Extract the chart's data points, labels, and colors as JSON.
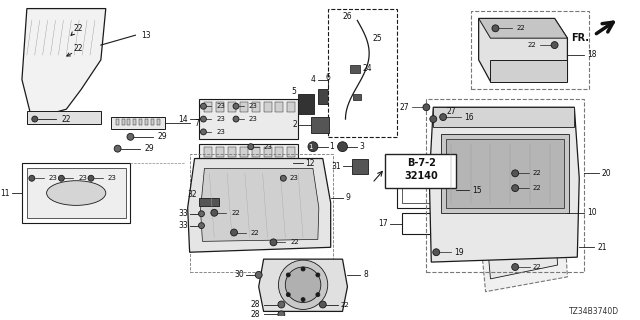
{
  "bg_color": "#ffffff",
  "ec": "#1a1a1a",
  "diagram_code": "TZ34B3740D",
  "fr_label": "FR.",
  "ref_text_line1": "B-7-2",
  "ref_text_line2": "32140",
  "figsize": [
    6.4,
    3.2
  ],
  "dpi": 100
}
